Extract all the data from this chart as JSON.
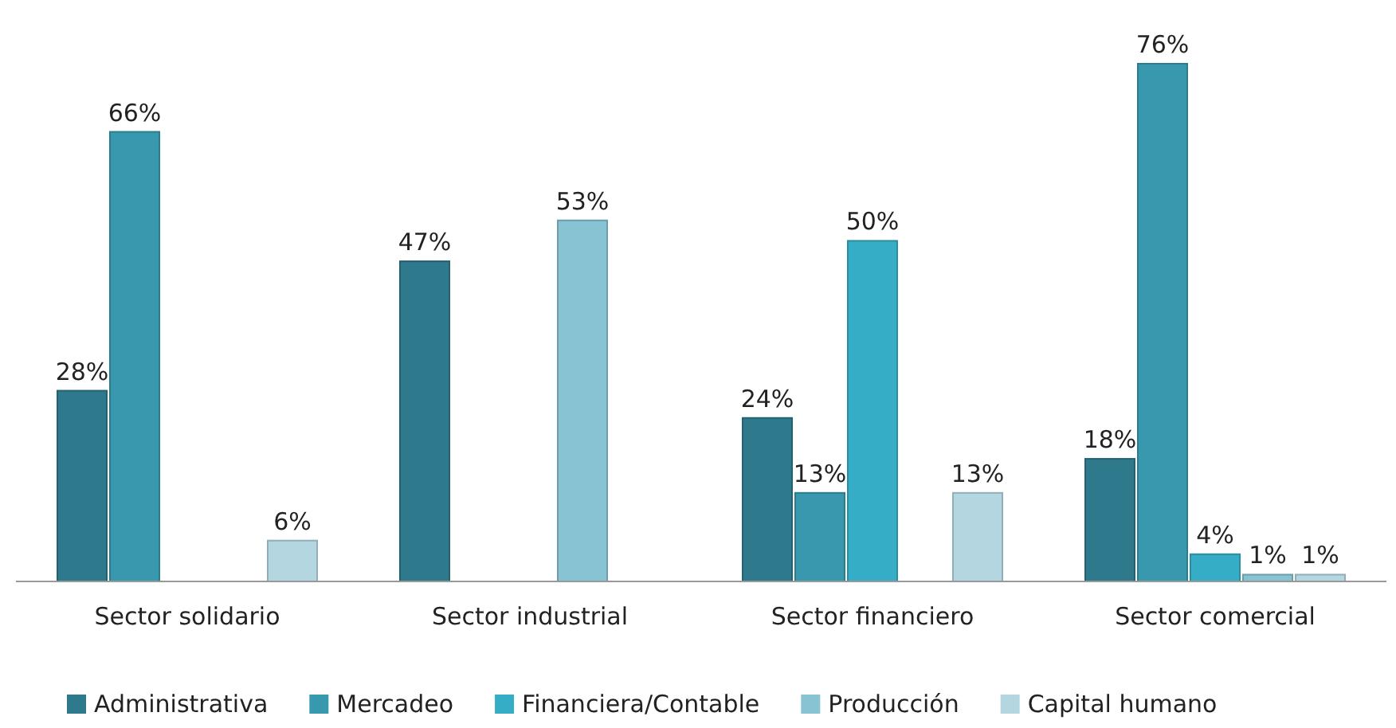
{
  "chart_data": {
    "type": "bar",
    "categories": [
      "Sector solidario",
      "Sector industrial",
      "Sector financiero",
      "Sector comercial"
    ],
    "series": [
      {
        "name": "Administrativa",
        "color": "#2e7a8c",
        "values": [
          28,
          47,
          24,
          18
        ],
        "value_labels": [
          "28%",
          "47%",
          "24%",
          "18%"
        ]
      },
      {
        "name": "Mercadeo",
        "color": "#3899ae",
        "values": [
          66,
          0,
          13,
          76
        ],
        "value_labels": [
          "66%",
          null,
          "13%",
          "76%"
        ]
      },
      {
        "name": "Financiera/Contable",
        "color": "#36adc6",
        "values": [
          0,
          0,
          50,
          4
        ],
        "value_labels": [
          null,
          null,
          "50%",
          "4%"
        ]
      },
      {
        "name": "Producción",
        "color": "#88c3d3",
        "values": [
          0,
          53,
          0,
          1
        ],
        "value_labels": [
          null,
          "53%",
          null,
          "1%"
        ]
      },
      {
        "name": "Capital humano",
        "color": "#b3d6e0",
        "values": [
          6,
          0,
          13,
          1
        ],
        "value_labels": [
          "6%",
          null,
          "13%",
          "1%"
        ]
      }
    ],
    "legend": "bottom"
  }
}
